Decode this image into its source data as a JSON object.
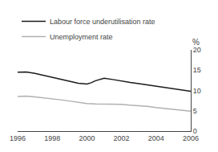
{
  "chart_data": {
    "type": "line",
    "ylabel": "%",
    "series": [
      {
        "name": "Labour force underutilisation rate",
        "color": "#1a1a1a",
        "x": [
          1996,
          1996.5,
          1997,
          1997.5,
          1998,
          1998.5,
          1999,
          1999.5,
          2000,
          2000.25,
          2000.5,
          2001,
          2001.5,
          2002,
          2002.5,
          2003,
          2003.5,
          2004,
          2004.5,
          2005,
          2005.5,
          2006
        ],
        "values": [
          14.5,
          14.55,
          14.2,
          13.7,
          13.2,
          12.7,
          12.2,
          11.8,
          11.6,
          11.9,
          12.4,
          13.0,
          12.7,
          12.3,
          12.0,
          11.7,
          11.4,
          11.1,
          10.8,
          10.5,
          10.2,
          9.8
        ]
      },
      {
        "name": "Unemployment rate",
        "color": "#b0b0b0",
        "x": [
          1996,
          1996.5,
          1997,
          1997.5,
          1998,
          1998.5,
          1999,
          1999.5,
          2000,
          2000.5,
          2001,
          2001.5,
          2002,
          2002.5,
          2003,
          2003.5,
          2004,
          2004.5,
          2005,
          2005.5,
          2006
        ],
        "values": [
          8.5,
          8.6,
          8.4,
          8.2,
          8.0,
          7.7,
          7.4,
          7.1,
          6.8,
          6.7,
          6.7,
          6.7,
          6.6,
          6.4,
          6.3,
          6.1,
          5.8,
          5.6,
          5.3,
          5.1,
          4.9
        ]
      }
    ],
    "xlim": [
      1996,
      2006
    ],
    "xticks": [
      1996,
      1998,
      2000,
      2002,
      2004,
      2006
    ],
    "ylim": [
      0,
      20
    ],
    "yticks": [
      0,
      5,
      10,
      15,
      20
    ],
    "grid": false,
    "legend": "upper left"
  }
}
